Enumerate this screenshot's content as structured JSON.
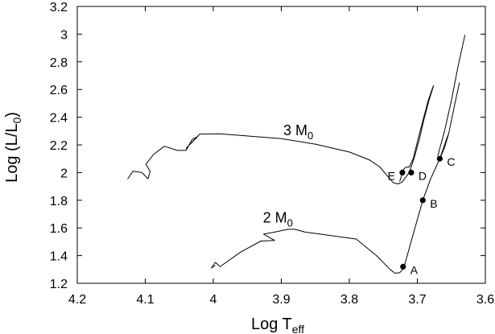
{
  "chart_data": {
    "type": "line",
    "title": "",
    "xlabel": {
      "main": "Log T",
      "sub": "eff"
    },
    "ylabel": {
      "main": "Log (L/L",
      "sub": "0",
      "suffix": ")"
    },
    "xlim": [
      4.2,
      3.6
    ],
    "ylim": [
      1.2,
      3.2
    ],
    "x_reversed": true,
    "x_ticks": [
      4.2,
      4.1,
      4.0,
      3.9,
      3.8,
      3.7,
      3.6
    ],
    "x_tick_labels": [
      "4.2",
      "4.1",
      "4",
      "3.9",
      "3.8",
      "3.7",
      "3.6"
    ],
    "y_ticks": [
      1.2,
      1.4,
      1.6,
      1.8,
      2.0,
      2.2,
      2.4,
      2.6,
      2.8,
      3.0,
      3.2
    ],
    "y_tick_labels": [
      "1.2",
      "1.4",
      "1.6",
      "1.8",
      "2",
      "2.2",
      "2.4",
      "2.6",
      "2.8",
      "3",
      "3.2"
    ],
    "grid": false,
    "series": [
      {
        "name": "",
        "label_main": "3 M",
        "label_sub": "0",
        "label_pos": [
          3.875,
          2.27
        ],
        "x": [
          4.126,
          4.118,
          4.105,
          4.096,
          4.093,
          4.099,
          4.088,
          4.072,
          4.053,
          4.04,
          4.031,
          4.023,
          4.04,
          4.02,
          3.99,
          3.9,
          3.85,
          3.8,
          3.77,
          3.755,
          3.745,
          3.735,
          3.728,
          3.722,
          3.718,
          3.712,
          3.705,
          3.697,
          3.69,
          3.683,
          3.676
        ],
        "y": [
          1.953,
          2.01,
          2.0,
          1.955,
          2.01,
          2.06,
          2.13,
          2.19,
          2.16,
          2.16,
          2.24,
          2.26,
          2.175,
          2.278,
          2.28,
          2.245,
          2.205,
          2.148,
          2.09,
          2.04,
          1.98,
          1.925,
          1.918,
          1.933,
          1.96,
          2.0,
          2.1,
          2.24,
          2.39,
          2.52,
          2.63
        ]
      },
      {
        "name": "",
        "x": [
          3.726,
          3.722,
          3.722,
          3.719,
          3.716,
          3.712,
          3.706,
          3.699,
          3.691,
          3.684,
          3.677
        ],
        "y": [
          1.935,
          1.995,
          2.005,
          2.03,
          2.04,
          2.04,
          2.1,
          2.24,
          2.39,
          2.52,
          2.62
        ]
      },
      {
        "name": "",
        "label_main": "2 M",
        "label_sub": "0",
        "label_pos": [
          3.905,
          1.64
        ],
        "x": [
          3.997,
          4.003,
          3.997,
          3.99,
          3.96,
          3.93,
          3.91,
          3.926,
          3.91,
          3.89,
          3.88,
          3.865,
          3.79,
          3.76,
          3.74,
          3.733,
          3.726,
          3.72,
          3.708,
          3.692,
          3.68,
          3.667,
          3.655
        ],
        "y": [
          1.33,
          1.31,
          1.352,
          1.32,
          1.425,
          1.505,
          1.51,
          1.555,
          1.57,
          1.59,
          1.59,
          1.57,
          1.52,
          1.4,
          1.3,
          1.273,
          1.276,
          1.31,
          1.52,
          1.8,
          1.96,
          2.1,
          2.27
        ]
      },
      {
        "name": "",
        "x": [
          3.67,
          3.66,
          3.65,
          3.64,
          3.63
        ],
        "y": [
          2.12,
          2.3,
          2.52,
          2.77,
          2.995
        ]
      },
      {
        "name": "",
        "x": [
          3.667,
          3.66,
          3.654,
          3.648,
          3.643,
          3.638
        ],
        "y": [
          2.1,
          2.18,
          2.28,
          2.42,
          2.54,
          2.65
        ]
      }
    ],
    "points": [
      {
        "label": "A",
        "x": 3.721,
        "y": 1.32,
        "label_side": "right"
      },
      {
        "label": "B",
        "x": 3.692,
        "y": 1.8,
        "label_side": "right"
      },
      {
        "label": "C",
        "x": 3.667,
        "y": 2.1,
        "label_side": "right"
      },
      {
        "label": "D",
        "x": 3.709,
        "y": 2.0,
        "label_side": "right"
      },
      {
        "label": "E",
        "x": 3.722,
        "y": 2.0,
        "label_side": "left"
      }
    ]
  }
}
